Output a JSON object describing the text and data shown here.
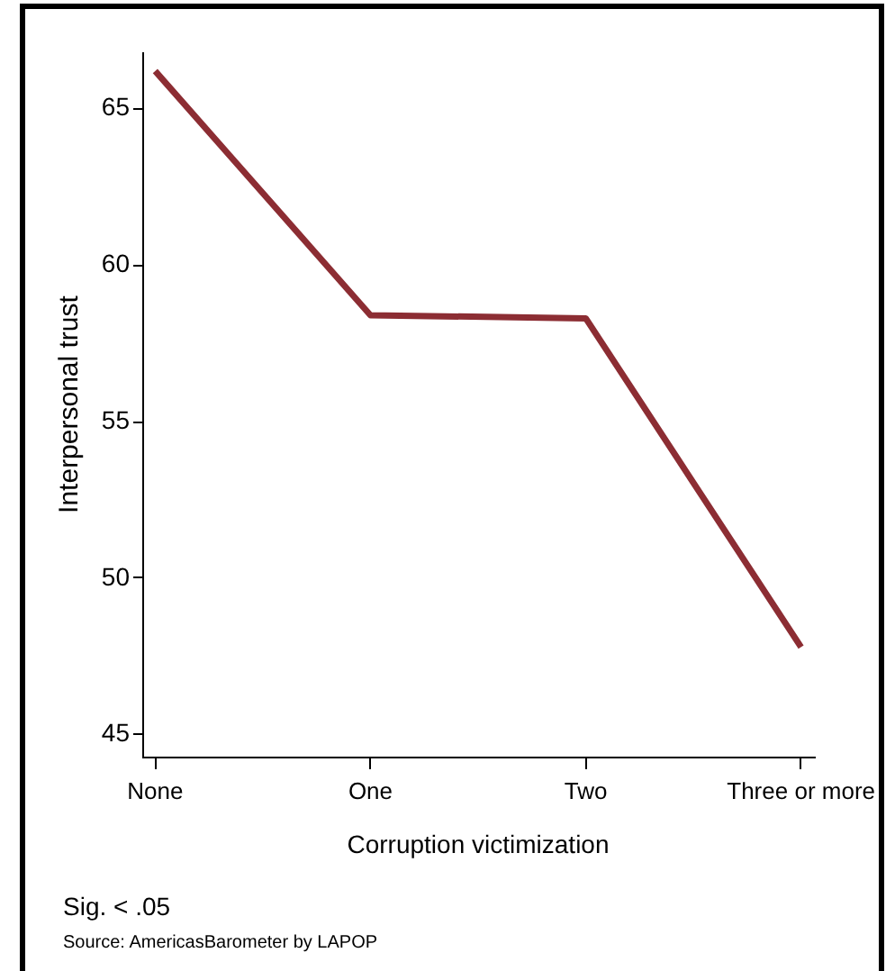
{
  "chart_data": {
    "type": "line",
    "xlabel": "Corruption victimization",
    "ylabel": "Interpersonal trust",
    "categories": [
      "None",
      "One",
      "Two",
      "Three or more"
    ],
    "series": [
      {
        "color": "#8c2d33",
        "values": [
          66.2,
          58.4,
          58.3,
          47.8
        ]
      }
    ],
    "ylim": [
      44.3,
      66.8
    ],
    "yticks": [
      45,
      50,
      55,
      60,
      65
    ],
    "grid": false,
    "legend": false,
    "marker": "none",
    "line_style": "solid",
    "annotations": [
      "Sig. < .05",
      "Source: AmericasBarometer by LAPOP"
    ]
  }
}
